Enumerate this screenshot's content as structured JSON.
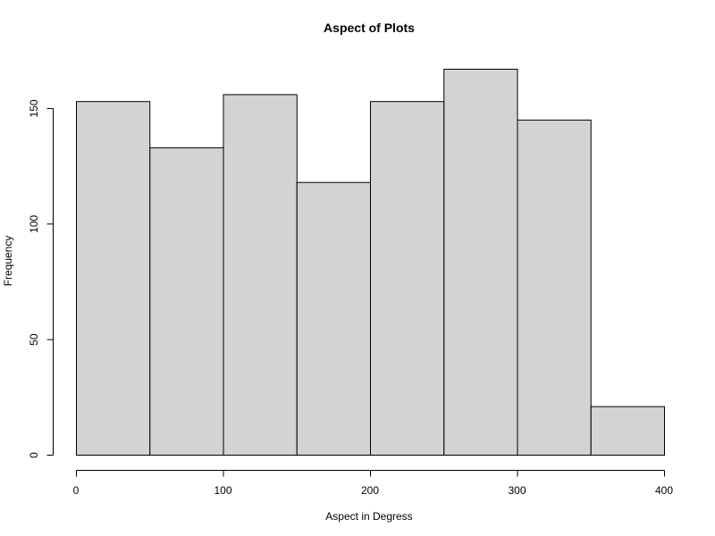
{
  "chart_data": {
    "type": "bar",
    "title": "Aspect of Plots",
    "xlabel": "Aspect in Degress",
    "ylabel": "Frequency",
    "bins": [
      {
        "x_start": 0,
        "x_end": 50,
        "value": 153
      },
      {
        "x_start": 50,
        "x_end": 100,
        "value": 133
      },
      {
        "x_start": 100,
        "x_end": 150,
        "value": 156
      },
      {
        "x_start": 150,
        "x_end": 200,
        "value": 118
      },
      {
        "x_start": 200,
        "x_end": 250,
        "value": 153
      },
      {
        "x_start": 250,
        "x_end": 300,
        "value": 167
      },
      {
        "x_start": 300,
        "x_end": 350,
        "value": 145
      },
      {
        "x_start": 350,
        "x_end": 400,
        "value": 21
      }
    ],
    "xlim": [
      0,
      400
    ],
    "ylim": [
      0,
      167
    ],
    "x_ticks": [
      0,
      100,
      200,
      300,
      400
    ],
    "y_ticks": [
      0,
      50,
      100,
      150
    ],
    "grid": false,
    "colors": {
      "bar_fill": "#d3d3d3",
      "bar_stroke": "#000000",
      "axis": "#000000"
    }
  }
}
